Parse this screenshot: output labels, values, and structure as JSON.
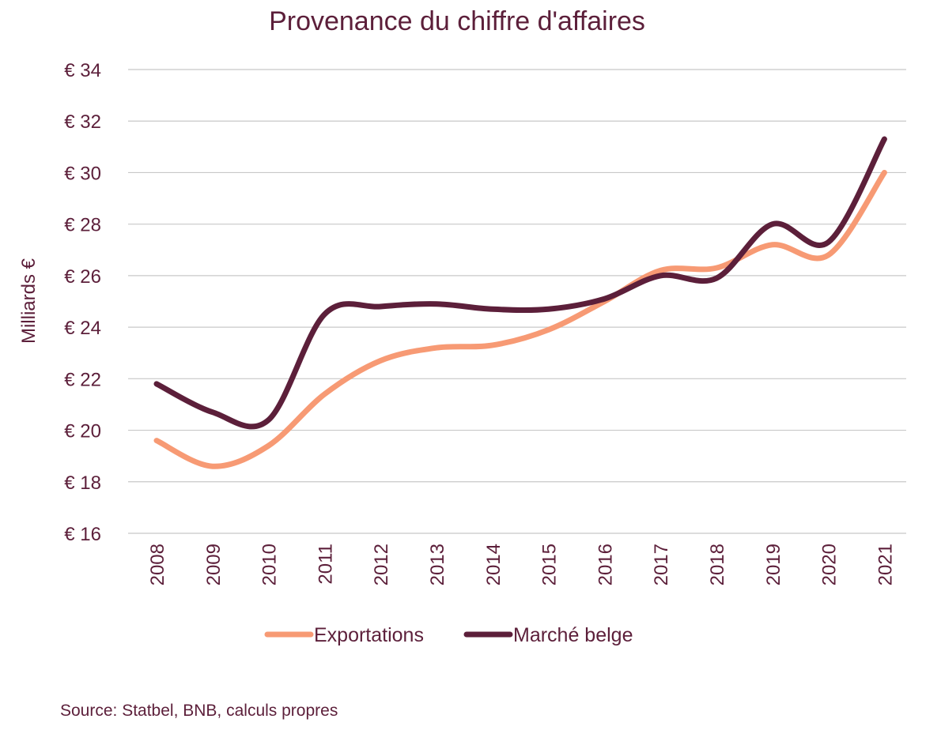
{
  "chart_data": {
    "type": "line",
    "title": "Provenance du chiffre d'affaires",
    "xlabel": "",
    "ylabel": "Milliards €",
    "ylim": [
      16,
      34
    ],
    "yticks": [
      16,
      18,
      20,
      22,
      24,
      26,
      28,
      30,
      32,
      34
    ],
    "ytick_labels": [
      "€ 16",
      "€ 18",
      "€ 20",
      "€ 22",
      "€ 24",
      "€ 26",
      "€ 28",
      "€ 30",
      "€ 32",
      "€ 34"
    ],
    "categories": [
      "2008",
      "2009",
      "2010",
      "2011",
      "2012",
      "2013",
      "2014",
      "2015",
      "2016",
      "2017",
      "2018",
      "2019",
      "2020",
      "2021"
    ],
    "series": [
      {
        "name": "Exportations",
        "color": "#f79a74",
        "values": [
          19.6,
          18.6,
          19.4,
          21.4,
          22.7,
          23.2,
          23.3,
          23.9,
          25.0,
          26.2,
          26.3,
          27.2,
          26.8,
          30.0
        ]
      },
      {
        "name": "Marché belge",
        "color": "#5c1f3a",
        "values": [
          21.8,
          20.7,
          20.4,
          24.5,
          24.8,
          24.9,
          24.7,
          24.7,
          25.1,
          26.0,
          25.9,
          28.0,
          27.3,
          31.3
        ]
      }
    ],
    "grid": true,
    "legend_position": "bottom"
  },
  "source": "Source: Statbel, BNB, calculs propres"
}
